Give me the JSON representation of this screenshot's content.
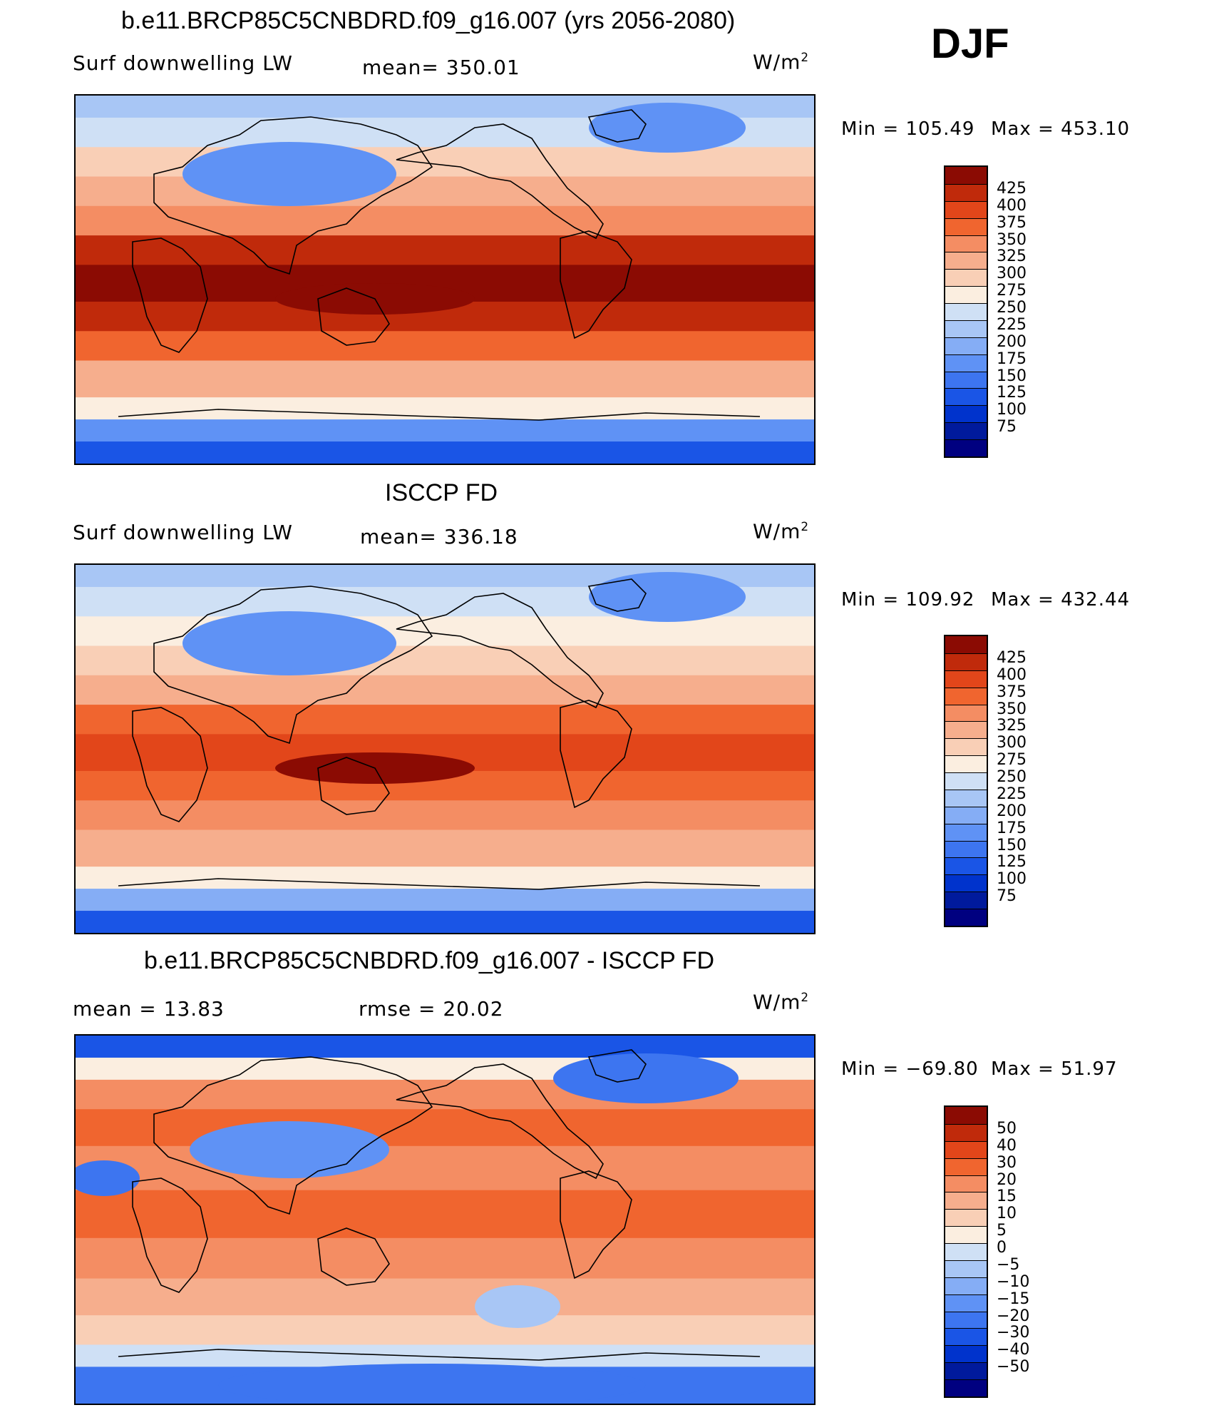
{
  "season": "DJF",
  "colors": {
    "abs_scale": [
      "#000080",
      "#001a9c",
      "#0033cc",
      "#1a55e6",
      "#3d75f0",
      "#5f92f5",
      "#85adf5",
      "#a8c6f5",
      "#cfe0f5",
      "#fbeee0",
      "#f9cfb6",
      "#f6ae8d",
      "#f48d63",
      "#f0652f",
      "#e2461a",
      "#c02a0b",
      "#8b0b03"
    ],
    "diff_scale": [
      "#000080",
      "#001a9c",
      "#0033cc",
      "#1a55e6",
      "#3d75f0",
      "#5f92f5",
      "#85adf5",
      "#a8c6f5",
      "#cfe0f5",
      "#fbeee0",
      "#f9cfb6",
      "#f6ae8d",
      "#f48d63",
      "#f0652f",
      "#e2461a",
      "#c02a0b",
      "#8b0b03"
    ]
  },
  "panels": [
    {
      "title": "b.e11.BRCP85C5CNBDRD.f09_g16.007 (yrs 2056-2080)",
      "left_label": "Surf downwelling LW",
      "center_label": "mean= 350.01",
      "units": "W/m",
      "units_sup": "2",
      "min_label": "Min  =  105.49",
      "max_label": "Max  =  453.10",
      "colorbar_labels": [
        "425",
        "400",
        "375",
        "350",
        "325",
        "300",
        "275",
        "250",
        "225",
        "200",
        "175",
        "150",
        "125",
        "100",
        "75"
      ]
    },
    {
      "title": "ISCCP FD",
      "left_label": "Surf downwelling LW",
      "center_label": "mean= 336.18",
      "units": "W/m",
      "units_sup": "2",
      "min_label": "Min  =  109.92",
      "max_label": "Max  =  432.44",
      "colorbar_labels": [
        "425",
        "400",
        "375",
        "350",
        "325",
        "300",
        "275",
        "250",
        "225",
        "200",
        "175",
        "150",
        "125",
        "100",
        "75"
      ]
    },
    {
      "title": "b.e11.BRCP85C5CNBDRD.f09_g16.007 - ISCCP FD",
      "left_label": "mean =    13.83",
      "center_label": "rmse =    20.02",
      "units": "W/m",
      "units_sup": "2",
      "min_label": "Min  =  −69.80",
      "max_label": "Max  =    51.97",
      "colorbar_labels": [
        "50",
        "40",
        "30",
        "20",
        "15",
        "10",
        "5",
        "0",
        "−5",
        "−10",
        "−15",
        "−20",
        "−30",
        "−40",
        "−50"
      ]
    }
  ]
}
